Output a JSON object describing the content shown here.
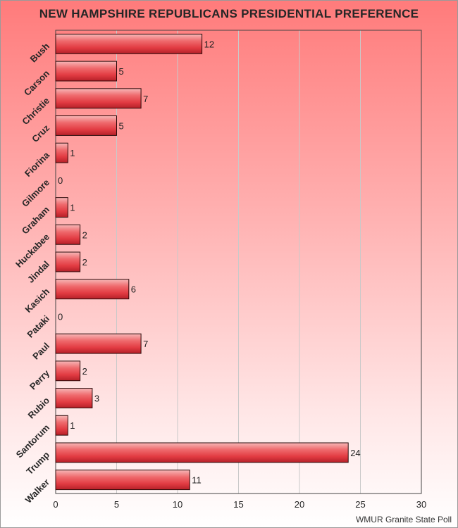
{
  "chart_data": {
    "type": "bar",
    "orientation": "horizontal",
    "title": "NEW HAMPSHIRE REPUBLICANS PRESIDENTIAL PREFERENCE",
    "categories": [
      "Bush",
      "Carson",
      "Christie",
      "Cruz",
      "Fiorina",
      "Gilmore",
      "Graham",
      "Huckabee",
      "Jindal",
      "Kasich",
      "Pataki",
      "Paul",
      "Perry",
      "Rubio",
      "Santorum",
      "Trump",
      "Walker"
    ],
    "values": [
      12,
      5,
      7,
      5,
      1,
      0,
      1,
      2,
      2,
      6,
      0,
      7,
      2,
      3,
      1,
      24,
      11
    ],
    "xlim": [
      0,
      30
    ],
    "xticks": [
      0,
      5,
      10,
      15,
      20,
      25,
      30
    ],
    "xgrid": true,
    "bar_color": "#e8454b",
    "source": "WMUR Granite State Poll"
  }
}
